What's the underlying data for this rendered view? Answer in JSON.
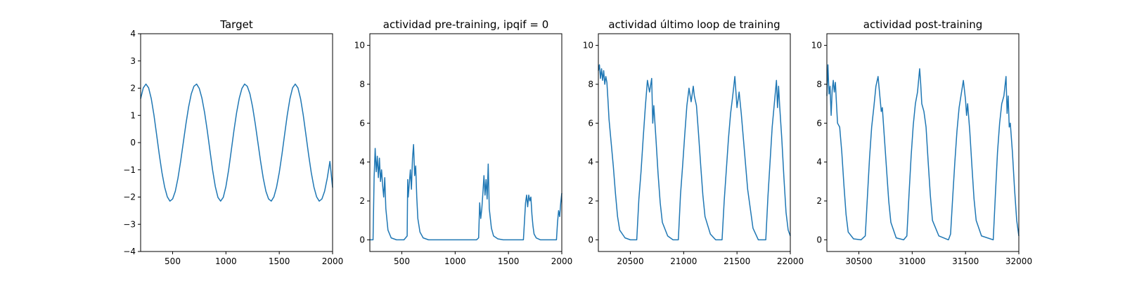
{
  "figure": {
    "line_color": "#1f77b4"
  },
  "chart_data": [
    {
      "type": "line",
      "title": "Target",
      "xlim": [
        200,
        2000
      ],
      "ylim": [
        -4,
        4
      ],
      "xticks": [
        500,
        1000,
        1500,
        2000
      ],
      "yticks": [
        -4,
        -3,
        -2,
        -1,
        0,
        1,
        2,
        3,
        4
      ],
      "xticklabels": [
        "500",
        "1000",
        "1500",
        "2000"
      ],
      "yticklabels": [
        "−4",
        "−3",
        "−2",
        "−1",
        "0",
        "1",
        "2",
        "3",
        "4"
      ],
      "series": [
        {
          "x": [
            200,
            225,
            250,
            275,
            300,
            325,
            350,
            375,
            400,
            425,
            450,
            475,
            500,
            525,
            550,
            575,
            600,
            625,
            650,
            675,
            700,
            725,
            750,
            775,
            800,
            825,
            850,
            875,
            900,
            925,
            950,
            975,
            1000,
            1025,
            1050,
            1075,
            1100,
            1125,
            1150,
            1175,
            1200,
            1225,
            1250,
            1275,
            1300,
            1325,
            1350,
            1375,
            1400,
            1425,
            1450,
            1475,
            1500,
            1525,
            1550,
            1575,
            1600,
            1625,
            1650,
            1675,
            1700,
            1725,
            1750,
            1775,
            1800,
            1825,
            1850,
            1875,
            1900,
            1925,
            1950,
            1975,
            2000
          ],
          "y": [
            1.61,
            2.01,
            2.15,
            2.01,
            1.61,
            1.01,
            0.29,
            -0.44,
            -1.1,
            -1.63,
            -1.99,
            -2.15,
            -2.07,
            -1.79,
            -1.31,
            -0.69,
            0.0,
            0.69,
            1.31,
            1.79,
            2.07,
            2.15,
            1.99,
            1.63,
            1.1,
            0.44,
            -0.29,
            -1.01,
            -1.61,
            -2.01,
            -2.15,
            -2.01,
            -1.61,
            -1.01,
            -0.29,
            0.44,
            1.1,
            1.63,
            1.99,
            2.15,
            2.07,
            1.79,
            1.31,
            0.69,
            0.0,
            -0.69,
            -1.31,
            -1.79,
            -2.07,
            -2.15,
            -1.99,
            -1.63,
            -1.1,
            -0.44,
            0.29,
            1.01,
            1.61,
            2.01,
            2.15,
            2.01,
            1.61,
            1.01,
            0.29,
            -0.44,
            -1.1,
            -1.63,
            -1.99,
            -2.15,
            -2.07,
            -1.79,
            -1.31,
            -0.69,
            -1.65
          ]
        }
      ]
    },
    {
      "type": "line",
      "title": "actividad pre-training, ipqif = 0",
      "xlim": [
        200,
        2000
      ],
      "ylim": [
        -0.6,
        10.6
      ],
      "xticks": [
        500,
        1000,
        1500,
        2000
      ],
      "yticks": [
        0,
        2,
        4,
        6,
        8,
        10
      ],
      "xticklabels": [
        "500",
        "1000",
        "1500",
        "2000"
      ],
      "yticklabels": [
        "0",
        "2",
        "4",
        "6",
        "8",
        "10"
      ],
      "series": [
        {
          "x": [
            200,
            230,
            240,
            250,
            260,
            270,
            280,
            290,
            300,
            310,
            320,
            330,
            340,
            350,
            370,
            400,
            450,
            520,
            550,
            555,
            560,
            570,
            580,
            590,
            600,
            610,
            620,
            630,
            640,
            650,
            670,
            700,
            750,
            850,
            1000,
            1100,
            1200,
            1220,
            1230,
            1240,
            1250,
            1260,
            1270,
            1280,
            1290,
            1300,
            1310,
            1320,
            1330,
            1340,
            1360,
            1400,
            1450,
            1550,
            1640,
            1660,
            1670,
            1680,
            1690,
            1700,
            1710,
            1720,
            1730,
            1740,
            1760,
            1800,
            1850,
            1950,
            1960,
            1970,
            1980,
            1990,
            2000
          ],
          "y": [
            0,
            0,
            3.2,
            4.7,
            3.5,
            4.3,
            3.2,
            4.2,
            3.0,
            3.6,
            2.8,
            2.2,
            3.2,
            1.6,
            0.5,
            0.1,
            0,
            0,
            0.2,
            3.1,
            2.2,
            2.9,
            3.6,
            2.6,
            4.2,
            4.9,
            3.3,
            3.8,
            2.2,
            1.1,
            0.4,
            0.1,
            0,
            0,
            0,
            0,
            0,
            0.1,
            1.9,
            1.1,
            1.6,
            2.4,
            3.3,
            2.3,
            3.1,
            2.1,
            3.9,
            1.6,
            1.1,
            0.6,
            0.2,
            0.05,
            0,
            0,
            0,
            1.9,
            2.3,
            1.7,
            2.3,
            2.0,
            2.2,
            1.3,
            0.7,
            0.3,
            0.1,
            0,
            0,
            0,
            0.9,
            1.5,
            1.2,
            1.9,
            2.4
          ]
        }
      ]
    },
    {
      "type": "line",
      "title": "actividad último loop de training",
      "xlim": [
        20200,
        22000
      ],
      "ylim": [
        -0.6,
        10.6
      ],
      "xticks": [
        20500,
        21000,
        21500,
        22000
      ],
      "yticks": [
        0,
        2,
        4,
        6,
        8,
        10
      ],
      "xticklabels": [
        "20500",
        "21000",
        "21500",
        "22000"
      ],
      "yticklabels": [
        "0",
        "2",
        "4",
        "6",
        "8",
        "10"
      ],
      "series": [
        {
          "x": [
            20200,
            20210,
            20220,
            20230,
            20240,
            20250,
            20260,
            20270,
            20280,
            20290,
            20300,
            20320,
            20340,
            20360,
            20380,
            20400,
            20450,
            20500,
            20560,
            20580,
            20600,
            20620,
            20640,
            20660,
            20680,
            20700,
            20710,
            20720,
            20740,
            20760,
            20780,
            20800,
            20850,
            20900,
            20950,
            20970,
            20990,
            21010,
            21030,
            21050,
            21070,
            21090,
            21100,
            21120,
            21140,
            21160,
            21180,
            21200,
            21250,
            21300,
            21360,
            21380,
            21400,
            21420,
            21440,
            21460,
            21480,
            21500,
            21520,
            21540,
            21560,
            21580,
            21600,
            21650,
            21700,
            21770,
            21790,
            21810,
            21830,
            21850,
            21870,
            21880,
            21890,
            21900,
            21920,
            21940,
            21960,
            21980,
            22000
          ],
          "y": [
            8.7,
            9.0,
            8.3,
            8.8,
            8.2,
            8.7,
            8.0,
            8.4,
            8.1,
            7.2,
            6.2,
            5.0,
            3.8,
            2.4,
            1.2,
            0.5,
            0.1,
            0,
            0,
            2.1,
            3.5,
            5.2,
            6.8,
            8.2,
            7.6,
            8.3,
            6.0,
            6.9,
            5.2,
            3.4,
            1.9,
            0.9,
            0.2,
            0,
            0,
            2.3,
            3.8,
            5.4,
            6.9,
            7.8,
            7.1,
            7.9,
            7.4,
            6.9,
            5.4,
            3.8,
            2.3,
            1.2,
            0.3,
            0,
            0,
            2.0,
            3.6,
            5.2,
            6.5,
            7.4,
            8.4,
            6.8,
            7.6,
            6.5,
            5.2,
            3.9,
            2.6,
            0.6,
            0,
            0,
            2.2,
            4.0,
            5.8,
            7.0,
            8.2,
            6.8,
            7.9,
            6.9,
            5.2,
            3.2,
            1.4,
            0.5,
            0.2
          ]
        }
      ]
    },
    {
      "type": "line",
      "title": "actividad post-training",
      "xlim": [
        30200,
        32000
      ],
      "ylim": [
        -0.6,
        10.6
      ],
      "xticks": [
        30500,
        31000,
        31500,
        32000
      ],
      "yticks": [
        0,
        2,
        4,
        6,
        8,
        10
      ],
      "xticklabels": [
        "30500",
        "31000",
        "31500",
        "32000"
      ],
      "yticklabels": [
        "0",
        "2",
        "4",
        "6",
        "8",
        "10"
      ],
      "series": [
        {
          "x": [
            30200,
            30210,
            30220,
            30230,
            30240,
            30250,
            30260,
            30270,
            30280,
            30290,
            30300,
            30320,
            30340,
            30360,
            30380,
            30400,
            30450,
            30520,
            30560,
            30580,
            30600,
            30620,
            30640,
            30660,
            30680,
            30700,
            30710,
            30720,
            30740,
            30760,
            30780,
            30800,
            30850,
            30920,
            30950,
            30970,
            30990,
            31010,
            31030,
            31050,
            31070,
            31080,
            31090,
            31110,
            31130,
            31150,
            31170,
            31190,
            31250,
            31340,
            31360,
            31380,
            31400,
            31420,
            31440,
            31460,
            31480,
            31500,
            31510,
            31520,
            31540,
            31560,
            31580,
            31600,
            31650,
            31760,
            31780,
            31800,
            31820,
            31840,
            31860,
            31880,
            31890,
            31900,
            31910,
            31920,
            31940,
            31960,
            31980,
            32000
          ],
          "y": [
            7.4,
            9.0,
            7.5,
            7.9,
            6.4,
            7.7,
            8.2,
            7.6,
            8.1,
            7.0,
            6.0,
            5.8,
            4.5,
            2.8,
            1.3,
            0.4,
            0.05,
            0,
            0.2,
            2.2,
            4.2,
            5.8,
            6.8,
            7.9,
            8.4,
            7.2,
            6.6,
            6.8,
            5.2,
            3.6,
            2.0,
            0.9,
            0.1,
            0,
            0.2,
            2.3,
            4.3,
            5.9,
            7.0,
            7.6,
            8.8,
            8.0,
            7.0,
            6.6,
            5.8,
            4.0,
            2.3,
            1.0,
            0.2,
            0,
            0.3,
            2.2,
            4.0,
            5.6,
            6.8,
            7.5,
            8.2,
            7.2,
            6.4,
            7.0,
            5.6,
            3.8,
            2.1,
            1.0,
            0.2,
            0,
            2.3,
            4.5,
            6.0,
            7.0,
            7.4,
            8.4,
            6.5,
            7.4,
            5.8,
            6.0,
            4.5,
            2.6,
            1.0,
            0.2
          ]
        }
      ]
    }
  ]
}
